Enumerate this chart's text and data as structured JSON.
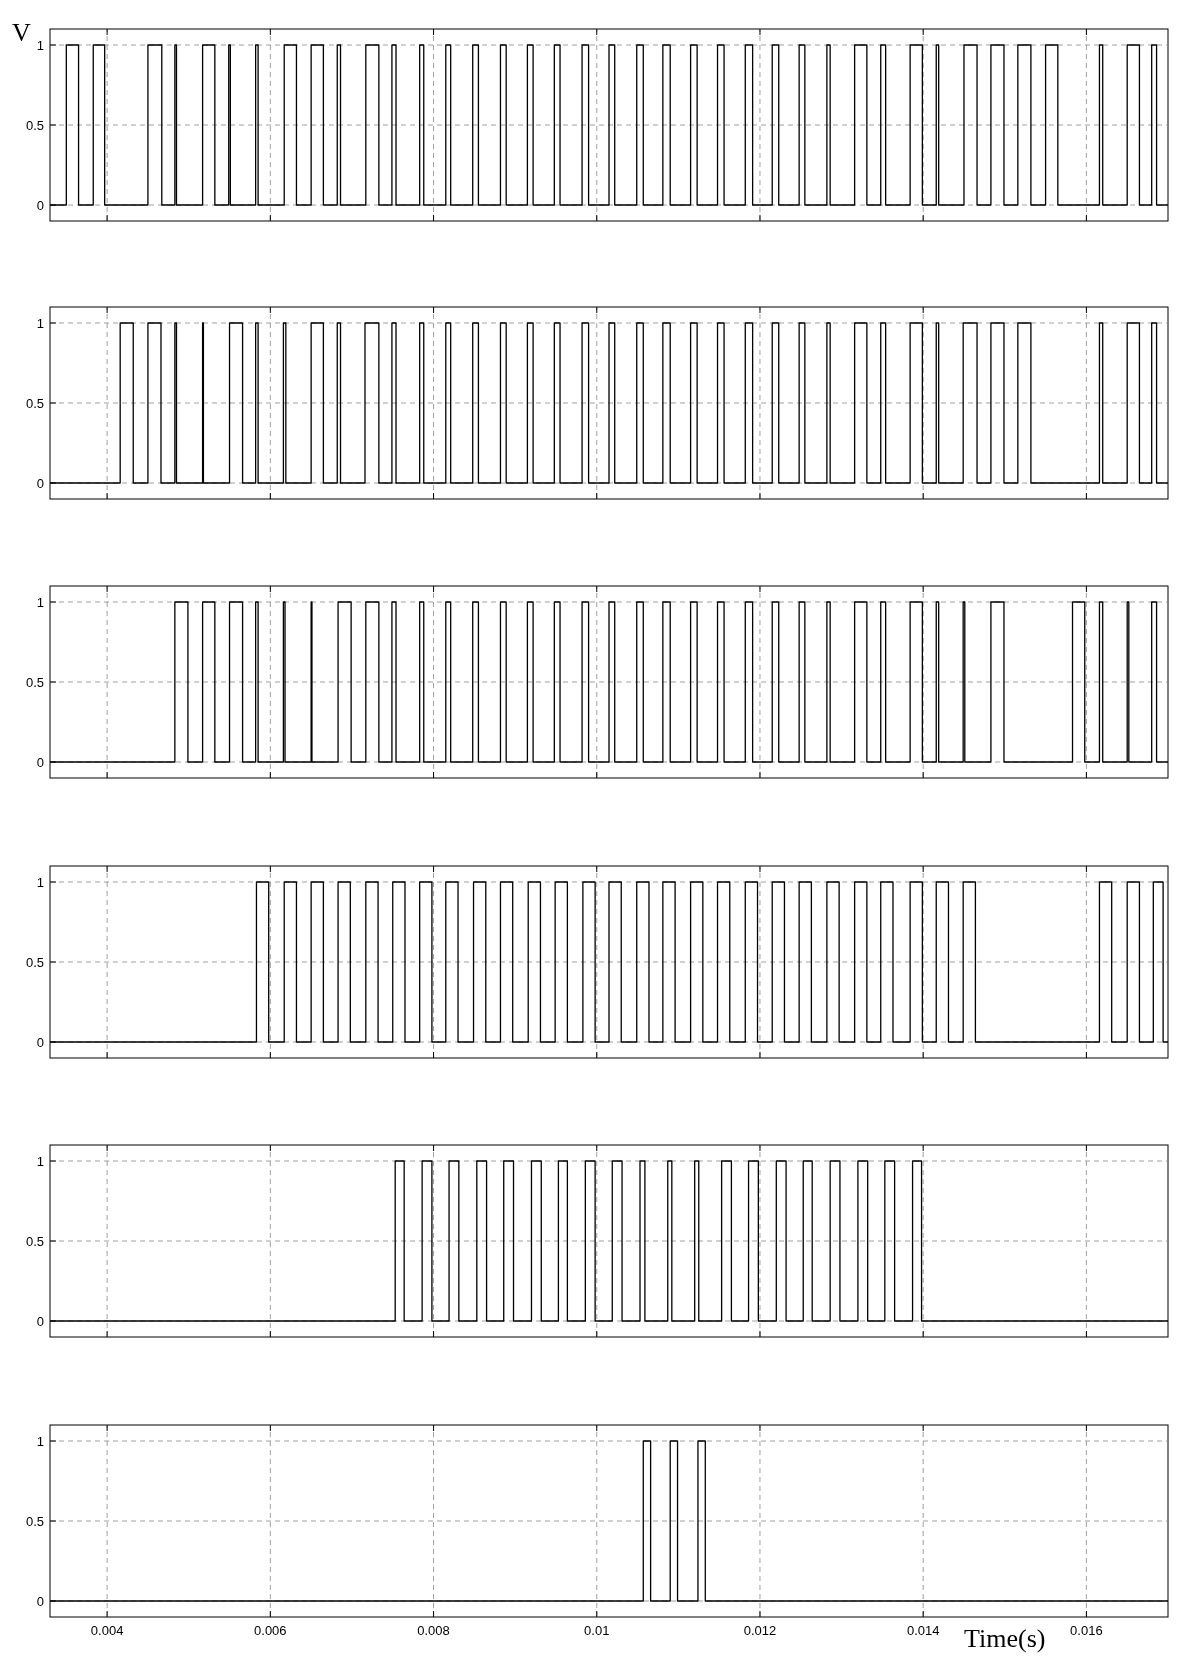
{
  "chart_data": [
    {
      "type": "step",
      "ylabel": "V",
      "xlim": [
        0.0033,
        0.017
      ],
      "ylim": [
        -0.1,
        1.1
      ],
      "xticks": [
        0.004,
        0.006,
        0.008,
        0.01,
        0.012,
        0.014,
        0.016
      ],
      "yticks": [
        0,
        0.5,
        1
      ],
      "grid": true,
      "tick_labels": "y",
      "line_style": "solid",
      "color": "#000000",
      "x": [
        0.0033,
        0.0035,
        0.00365,
        0.00383,
        0.00397,
        0.0045,
        0.00467,
        0.00483,
        0.00485,
        0.00517,
        0.00532,
        0.00549,
        0.00551,
        0.00582,
        0.00585,
        0.00617,
        0.00632,
        0.0065,
        0.00665,
        0.00682,
        0.00686,
        0.00717,
        0.00733,
        0.00749,
        0.00754,
        0.00783,
        0.00788,
        0.00815,
        0.00821,
        0.00848,
        0.00855,
        0.00882,
        0.00889,
        0.00915,
        0.00922,
        0.00948,
        0.00955,
        0.00982,
        0.0099,
        0.01015,
        0.01022,
        0.01049,
        0.01057,
        0.01081,
        0.0109,
        0.01115,
        0.01123,
        0.01148,
        0.01156,
        0.01182,
        0.01191,
        0.01215,
        0.01223,
        0.01248,
        0.01255,
        0.01282,
        0.01286,
        0.01316,
        0.01331,
        0.01348,
        0.01354,
        0.01384,
        0.01399,
        0.01416,
        0.01419,
        0.0145,
        0.01466,
        0.01483,
        0.01499,
        0.01516,
        0.01532,
        0.0155,
        0.01565,
        0.01616,
        0.0162,
        0.0165,
        0.01665,
        0.0168,
        0.01686,
        0.017
      ],
      "values": [
        0,
        1,
        0,
        1,
        0,
        1,
        0,
        1,
        0,
        1,
        0,
        1,
        0,
        1,
        0,
        1,
        0,
        1,
        0,
        1,
        0,
        1,
        0,
        1,
        0,
        1,
        0,
        1,
        0,
        1,
        0,
        1,
        0,
        1,
        0,
        1,
        0,
        1,
        0,
        1,
        0,
        1,
        0,
        1,
        0,
        1,
        0,
        1,
        0,
        1,
        0,
        1,
        0,
        1,
        0,
        1,
        0,
        1,
        0,
        1,
        0,
        1,
        0,
        1,
        0,
        1,
        0,
        1,
        0,
        1,
        0,
        1,
        0,
        1,
        0,
        1,
        0,
        1,
        0,
        0
      ]
    },
    {
      "type": "step",
      "xlim": [
        0.0033,
        0.017
      ],
      "ylim": [
        -0.1,
        1.1
      ],
      "xticks": [
        0.004,
        0.006,
        0.008,
        0.01,
        0.012,
        0.014,
        0.016
      ],
      "yticks": [
        0,
        0.5,
        1
      ],
      "grid": true,
      "tick_labels": "y",
      "line_style": "solid",
      "color": "#000000",
      "x": [
        0.0033,
        0.00416,
        0.00432,
        0.0045,
        0.00466,
        0.00483,
        0.00485,
        0.00517,
        0.00518,
        0.0055,
        0.00566,
        0.00582,
        0.00585,
        0.00616,
        0.00619,
        0.0065,
        0.00665,
        0.00682,
        0.00686,
        0.00716,
        0.00733,
        0.00749,
        0.00754,
        0.00783,
        0.00788,
        0.00815,
        0.00821,
        0.00848,
        0.00855,
        0.00882,
        0.00889,
        0.00915,
        0.00922,
        0.00948,
        0.00955,
        0.00982,
        0.0099,
        0.01015,
        0.01022,
        0.01049,
        0.01057,
        0.01081,
        0.0109,
        0.01115,
        0.01123,
        0.01148,
        0.01156,
        0.01182,
        0.01191,
        0.01215,
        0.01223,
        0.01248,
        0.01255,
        0.01282,
        0.01286,
        0.01316,
        0.01331,
        0.01348,
        0.01354,
        0.01384,
        0.01399,
        0.01416,
        0.01419,
        0.01449,
        0.01466,
        0.01483,
        0.01499,
        0.01516,
        0.01532,
        0.01616,
        0.0162,
        0.0165,
        0.01665,
        0.0168,
        0.01686,
        0.017
      ],
      "values": [
        0,
        1,
        0,
        1,
        0,
        1,
        0,
        1,
        0,
        1,
        0,
        1,
        0,
        1,
        0,
        1,
        0,
        1,
        0,
        1,
        0,
        1,
        0,
        1,
        0,
        1,
        0,
        1,
        0,
        1,
        0,
        1,
        0,
        1,
        0,
        1,
        0,
        1,
        0,
        1,
        0,
        1,
        0,
        1,
        0,
        1,
        0,
        1,
        0,
        1,
        0,
        1,
        0,
        1,
        0,
        1,
        0,
        1,
        0,
        1,
        0,
        1,
        0,
        1,
        0,
        1,
        0,
        1,
        0,
        1,
        0,
        1,
        0,
        1,
        0,
        0
      ]
    },
    {
      "type": "step",
      "xlim": [
        0.0033,
        0.017
      ],
      "ylim": [
        -0.1,
        1.1
      ],
      "xticks": [
        0.004,
        0.006,
        0.008,
        0.01,
        0.012,
        0.014,
        0.016
      ],
      "yticks": [
        0,
        0.5,
        1
      ],
      "grid": true,
      "tick_labels": "y",
      "line_style": "solid",
      "color": "#000000",
      "x": [
        0.0033,
        0.00483,
        0.00499,
        0.00517,
        0.00532,
        0.0055,
        0.00566,
        0.00582,
        0.00585,
        0.00616,
        0.00618,
        0.0065,
        0.00651,
        0.00683,
        0.00699,
        0.00717,
        0.00733,
        0.00749,
        0.00754,
        0.00783,
        0.00788,
        0.00815,
        0.00821,
        0.00848,
        0.00855,
        0.00882,
        0.00889,
        0.00915,
        0.00922,
        0.00948,
        0.00955,
        0.00982,
        0.0099,
        0.01015,
        0.01022,
        0.01049,
        0.01057,
        0.01081,
        0.0109,
        0.01115,
        0.01123,
        0.01148,
        0.01156,
        0.01182,
        0.01191,
        0.01215,
        0.01223,
        0.01248,
        0.01255,
        0.01282,
        0.01286,
        0.01316,
        0.01331,
        0.01348,
        0.01354,
        0.01384,
        0.01399,
        0.01416,
        0.01419,
        0.01449,
        0.01451,
        0.01483,
        0.01499,
        0.01583,
        0.01598,
        0.01616,
        0.0162,
        0.0165,
        0.01652,
        0.0168,
        0.01686,
        0.017
      ],
      "values": [
        0,
        1,
        0,
        1,
        0,
        1,
        0,
        1,
        0,
        1,
        0,
        1,
        0,
        1,
        0,
        1,
        0,
        1,
        0,
        1,
        0,
        1,
        0,
        1,
        0,
        1,
        0,
        1,
        0,
        1,
        0,
        1,
        0,
        1,
        0,
        1,
        0,
        1,
        0,
        1,
        0,
        1,
        0,
        1,
        0,
        1,
        0,
        1,
        0,
        1,
        0,
        1,
        0,
        1,
        0,
        1,
        0,
        1,
        0,
        1,
        0,
        1,
        0,
        1,
        0,
        1,
        0,
        1,
        0,
        1,
        0,
        0
      ]
    },
    {
      "type": "step",
      "xlim": [
        0.0033,
        0.017
      ],
      "ylim": [
        -0.1,
        1.1
      ],
      "xticks": [
        0.004,
        0.006,
        0.008,
        0.01,
        0.012,
        0.014,
        0.016
      ],
      "yticks": [
        0,
        0.5,
        1
      ],
      "grid": true,
      "tick_labels": "y",
      "line_style": "solid",
      "color": "#000000",
      "x": [
        0.0033,
        0.00583,
        0.00598,
        0.00617,
        0.00632,
        0.0065,
        0.00665,
        0.00683,
        0.00698,
        0.00717,
        0.00732,
        0.0075,
        0.00765,
        0.00783,
        0.00798,
        0.00815,
        0.0083,
        0.00849,
        0.00864,
        0.00882,
        0.00897,
        0.00916,
        0.00931,
        0.00949,
        0.00964,
        0.00983,
        0.00998,
        0.01015,
        0.0103,
        0.01049,
        0.01064,
        0.01081,
        0.01096,
        0.01115,
        0.0113,
        0.01148,
        0.01163,
        0.01182,
        0.01197,
        0.01215,
        0.0123,
        0.01248,
        0.01263,
        0.01282,
        0.01297,
        0.01316,
        0.01331,
        0.01348,
        0.01363,
        0.01384,
        0.01399,
        0.01416,
        0.01431,
        0.01449,
        0.01464,
        0.01616,
        0.01631,
        0.0165,
        0.01665,
        0.01682,
        0.01694,
        0.017
      ],
      "values": [
        0,
        1,
        0,
        1,
        0,
        1,
        0,
        1,
        0,
        1,
        0,
        1,
        0,
        1,
        0,
        1,
        0,
        1,
        0,
        1,
        0,
        1,
        0,
        1,
        0,
        1,
        0,
        1,
        0,
        1,
        0,
        1,
        0,
        1,
        0,
        1,
        0,
        1,
        0,
        1,
        0,
        1,
        0,
        1,
        0,
        1,
        0,
        1,
        0,
        1,
        0,
        1,
        0,
        1,
        0,
        1,
        0,
        1,
        0,
        1,
        0,
        0
      ]
    },
    {
      "type": "step",
      "xlim": [
        0.0033,
        0.017
      ],
      "ylim": [
        -0.1,
        1.1
      ],
      "xticks": [
        0.004,
        0.006,
        0.008,
        0.01,
        0.012,
        0.014,
        0.016
      ],
      "yticks": [
        0,
        0.5,
        1
      ],
      "grid": true,
      "tick_labels": "y",
      "line_style": "solid",
      "color": "#000000",
      "x": [
        0.0033,
        0.00753,
        0.00764,
        0.00786,
        0.00798,
        0.00819,
        0.00831,
        0.00853,
        0.00865,
        0.00886,
        0.00898,
        0.0092,
        0.00932,
        0.00953,
        0.00964,
        0.00986,
        0.00998,
        0.01019,
        0.01031,
        0.01053,
        0.01059,
        0.01087,
        0.01092,
        0.0112,
        0.01125,
        0.01153,
        0.01165,
        0.01186,
        0.01198,
        0.0122,
        0.01232,
        0.01253,
        0.01264,
        0.01286,
        0.01298,
        0.0132,
        0.01332,
        0.01353,
        0.01365,
        0.01387,
        0.01398,
        0.017
      ],
      "values": [
        0,
        1,
        0,
        1,
        0,
        1,
        0,
        1,
        0,
        1,
        0,
        1,
        0,
        1,
        0,
        1,
        0,
        1,
        0,
        1,
        0,
        1,
        0,
        1,
        0,
        1,
        0,
        1,
        0,
        1,
        0,
        1,
        0,
        1,
        0,
        1,
        0,
        1,
        0,
        1,
        0,
        0
      ]
    },
    {
      "type": "step",
      "xlabel": "Time(s)",
      "xlim": [
        0.0033,
        0.017
      ],
      "ylim": [
        -0.1,
        1.1
      ],
      "xticks": [
        0.004,
        0.006,
        0.008,
        {
          "value": 0.01,
          "label": "0.01"
        },
        0.012,
        0.014,
        0.016
      ],
      "yticks": [
        0,
        0.5,
        1
      ],
      "grid": true,
      "line_style": "solid",
      "color": "#000000",
      "x": [
        0.0033,
        0.01057,
        0.01066,
        0.0109,
        0.01099,
        0.01124,
        0.01133,
        0.017
      ],
      "values": [
        0,
        1,
        0,
        1,
        0,
        1,
        0,
        0
      ]
    }
  ]
}
